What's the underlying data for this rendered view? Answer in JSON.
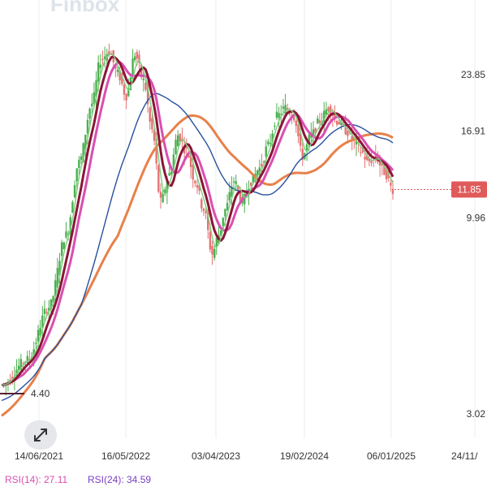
{
  "watermark": "Finbox",
  "chart_data": {
    "type": "candlestick",
    "price_axis": {
      "ticks": [
        "23.85",
        "16.91",
        "9.96",
        "3.02"
      ],
      "tick_values": [
        23.85,
        16.91,
        9.96,
        3.02
      ],
      "scale": "log"
    },
    "time_axis": {
      "ticks": [
        "14/06/2021",
        "16/05/2022",
        "03/04/2023",
        "19/02/2024",
        "06/01/2025",
        "24/11/"
      ]
    },
    "last_price": {
      "value": "11.85",
      "color": "#e05a5a"
    },
    "ma_label": {
      "value": "4.40"
    },
    "colors": {
      "up": "#4caf50",
      "down": "#e57373",
      "ma_light_green": "#7ccf7c",
      "ma_dark_red": "#8b1538",
      "ma_pink": "#d94fb0",
      "ma_blue": "#2850a0",
      "ma_orange": "#e8804a"
    },
    "grid": "vertical"
  },
  "rsi": {
    "rsi14_label": "RSI(14): 27.11",
    "rsi24_label": "RSI(24): 34.59",
    "rsi14_color": "#d94fb0",
    "rsi24_color": "#7a3fc4"
  },
  "expand_icon": "expand-arrows-icon"
}
